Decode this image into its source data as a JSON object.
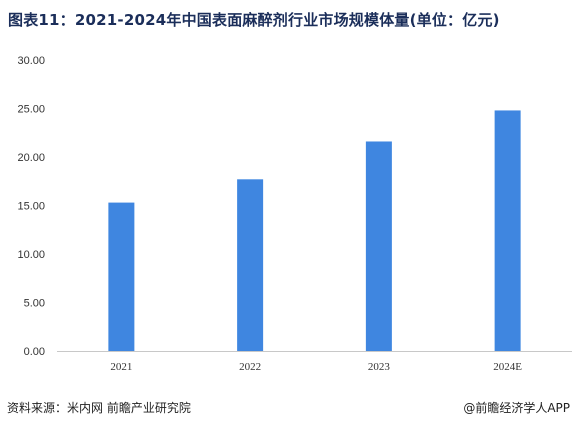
{
  "title": "图表11：2021-2024年中国表面麻醉剂行业市场规模体量(单位：亿元)",
  "source": "资料来源：米内网 前瞻产业研究院",
  "brand": "@前瞻经济学人APP",
  "colors": {
    "bar": "#3f86e0",
    "axis": "#c8c8c8",
    "title": "#1b2e5a"
  },
  "chart_data": {
    "type": "bar",
    "categories": [
      "2021",
      "2022",
      "2023",
      "2024E"
    ],
    "values": [
      15.3,
      17.7,
      21.6,
      24.8
    ],
    "ylim": [
      0,
      30
    ],
    "yticks": [
      "0.00",
      "5.00",
      "10.00",
      "15.00",
      "20.00",
      "25.00",
      "30.00"
    ],
    "grid": false
  }
}
